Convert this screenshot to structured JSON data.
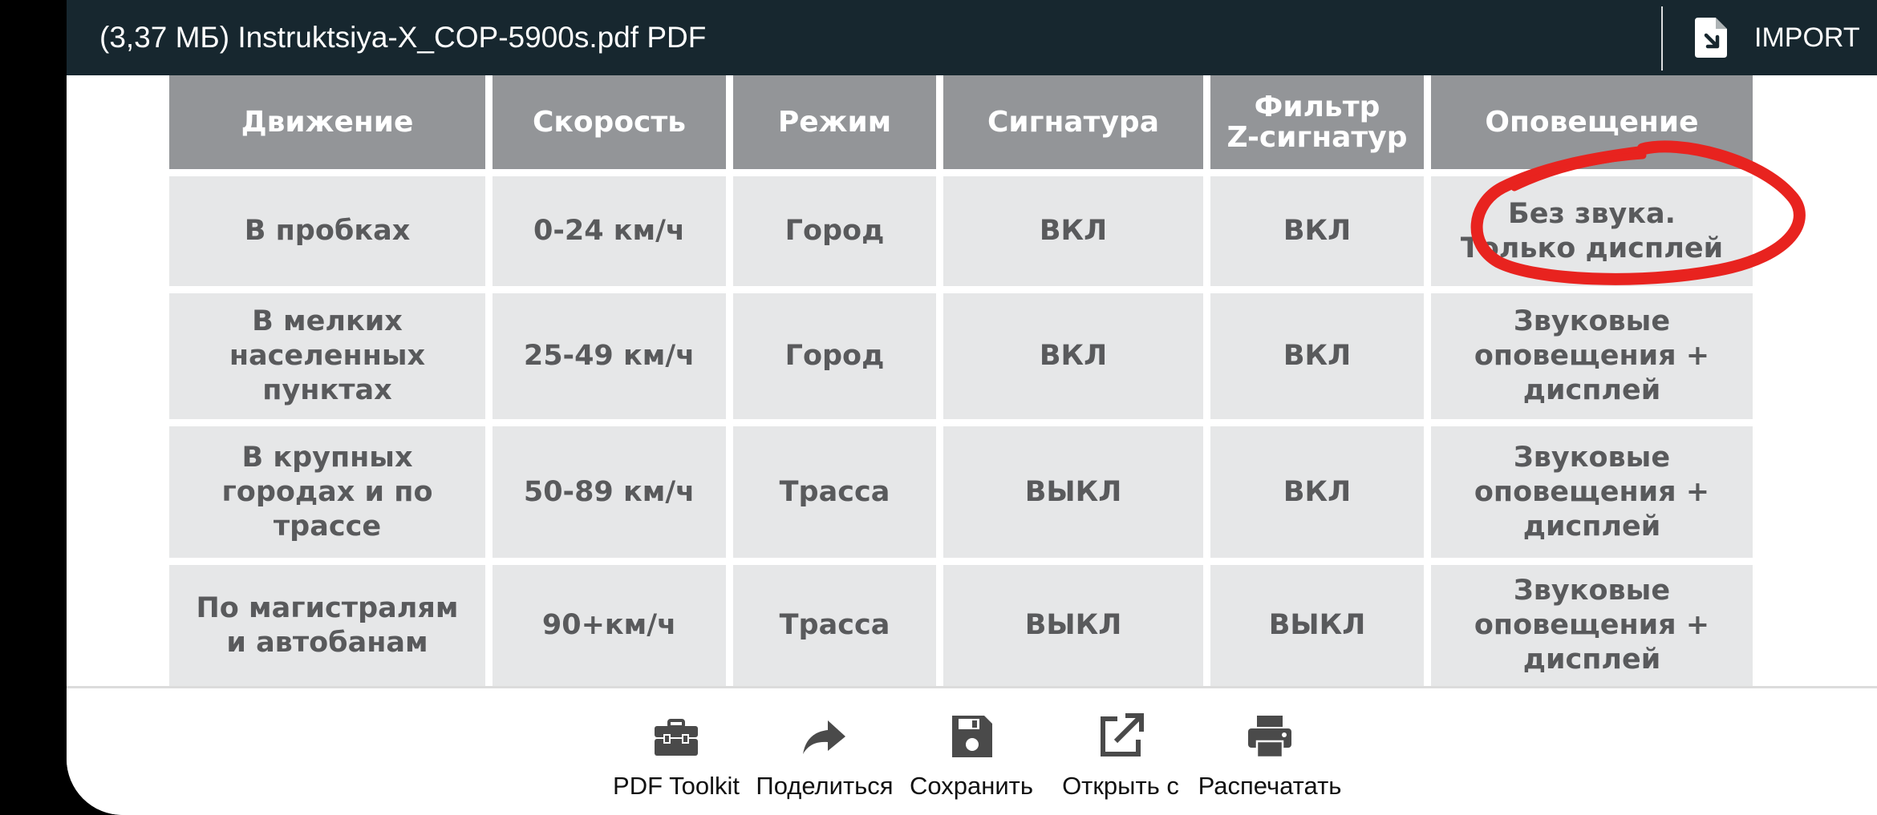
{
  "header": {
    "document_title": "(3,37 МБ) Instruktsiya-X_COP-5900s.pdf PDF",
    "import_label": "IMPORT",
    "import_icon": "file-import-icon"
  },
  "table": {
    "headers": [
      "Движение",
      "Скорость",
      "Режим",
      "Сигнатура",
      "Фильтр\nZ-сигнатур",
      "Оповещение"
    ],
    "rows": [
      [
        "В пробках",
        "0-24 км/ч",
        "Город",
        "ВКЛ",
        "ВКЛ",
        "Без звука.\nТолько дисплей"
      ],
      [
        "В мелких\nнаселенных\nпунктах",
        "25-49 км/ч",
        "Город",
        "ВКЛ",
        "ВКЛ",
        "Звуковые\nоповещения +\nдисплей"
      ],
      [
        "В крупных\nгородах и по\nтрассе",
        "50-89 км/ч",
        "Трасса",
        "ВЫКЛ",
        "ВКЛ",
        "Звуковые\nоповещения +\nдисплей"
      ],
      [
        "По магистралям\nи автобанам",
        "90+км/ч",
        "Трасса",
        "ВЫКЛ",
        "ВЫКЛ",
        "Звуковые\nоповещения +\nдисплей"
      ]
    ],
    "header_color": "#939598",
    "cell_color": "#e6e7e8",
    "annotation_color": "#e8231f"
  },
  "toolbar": {
    "items": [
      {
        "label": "PDF Toolkit",
        "icon": "toolbox-icon"
      },
      {
        "label": "Поделиться",
        "icon": "share-arrow-icon"
      },
      {
        "label": "Сохранить",
        "icon": "save-icon"
      },
      {
        "label": "Открыть с",
        "icon": "open-external-icon"
      },
      {
        "label": "Распечатать",
        "icon": "printer-icon"
      }
    ]
  }
}
